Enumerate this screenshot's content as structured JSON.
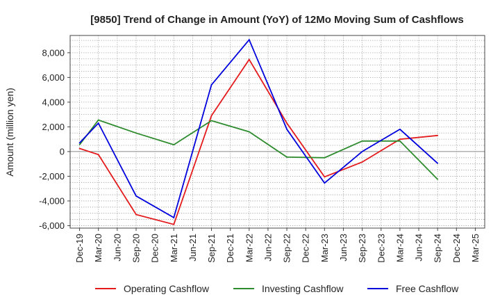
{
  "chart_data": {
    "type": "line",
    "title": "[9850]  Trend of Change in Amount (YoY) of 12Mo Moving Sum of Cashflows",
    "xlabel": "",
    "ylabel": "Amount (million yen)",
    "ylim": [
      -6200,
      9400
    ],
    "yticks": [
      -6000,
      -4000,
      -2000,
      0,
      2000,
      4000,
      6000,
      8000
    ],
    "ytick_labels": [
      "-6,000",
      "-4,000",
      "-2,000",
      "0",
      "2,000",
      "4,000",
      "6,000",
      "8,000"
    ],
    "categories": [
      "Dec-19",
      "Mar-20",
      "Jun-20",
      "Sep-20",
      "Dec-20",
      "Mar-21",
      "Jun-21",
      "Sep-21",
      "Dec-21",
      "Mar-22",
      "Jun-22",
      "Sep-22",
      "Dec-22",
      "Mar-23",
      "Jun-23",
      "Sep-23",
      "Dec-23",
      "Mar-24",
      "Jun-24",
      "Sep-24",
      "Dec-24",
      "Mar-25"
    ],
    "grid": true,
    "legend_position": "bottom",
    "series": [
      {
        "name": "Operating Cashflow",
        "color": "#e41a1c",
        "values": [
          250,
          -250,
          null,
          -5100,
          null,
          -5900,
          null,
          2900,
          null,
          7450,
          null,
          2300,
          null,
          -2050,
          null,
          -850,
          null,
          1000,
          null,
          1300,
          null,
          null
        ]
      },
      {
        "name": "Investing Cashflow",
        "color": "#2e8b2e",
        "values": [
          550,
          2550,
          null,
          1500,
          null,
          550,
          null,
          2500,
          null,
          1600,
          null,
          -450,
          null,
          -500,
          null,
          850,
          null,
          850,
          null,
          -2250,
          null,
          null
        ]
      },
      {
        "name": "Free Cashflow",
        "color": "#0000dd",
        "values": [
          700,
          2300,
          null,
          -3600,
          null,
          -5350,
          null,
          5400,
          null,
          9050,
          null,
          1800,
          null,
          -2550,
          null,
          0,
          null,
          1800,
          null,
          -950,
          null,
          null
        ]
      }
    ]
  }
}
